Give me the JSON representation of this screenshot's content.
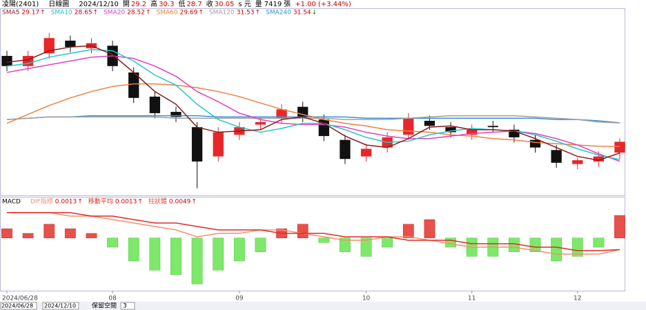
{
  "header": {
    "symbol": "凌陽(2401)",
    "period": "日線圖",
    "date": "2024/12/10",
    "fields": [
      {
        "label": "開",
        "value": 29.2
      },
      {
        "label": "高",
        "value": 30.3
      },
      {
        "label": "低",
        "value": 28.7
      },
      {
        "label": "收",
        "value": 30.05
      }
    ],
    "unit": "s 元",
    "volume_label": "量",
    "volume": 7419,
    "volume_unit": "張",
    "change": "+1.00",
    "change_pct": "(+3.44%)"
  },
  "chart_data": [
    {
      "type": "candlestick",
      "ylim": [
        26,
        40
      ],
      "open": [
        36.8,
        36.0,
        37.0,
        38.0,
        37.4,
        37.6,
        35.5,
        33.6,
        32.4,
        31.2,
        28.9,
        30.6,
        31.4,
        31.9,
        32.8,
        31.8,
        30.2,
        28.9,
        29.6,
        30.6,
        31.7,
        31.2,
        30.6,
        31.3,
        31.0,
        30.2,
        29.4,
        28.3,
        28.5,
        29.2
      ],
      "high": [
        37.2,
        37.2,
        38.6,
        38.4,
        38.2,
        38.0,
        35.9,
        34.0,
        32.8,
        31.6,
        31.2,
        31.6,
        32.0,
        33.0,
        33.2,
        32.2,
        30.6,
        29.9,
        30.8,
        32.3,
        32.1,
        31.6,
        31.4,
        31.7,
        31.4,
        30.6,
        29.8,
        28.8,
        29.3,
        30.3
      ],
      "low": [
        35.6,
        35.6,
        36.6,
        37.1,
        37.0,
        35.6,
        33.1,
        31.9,
        31.6,
        26.4,
        28.5,
        30.2,
        31.0,
        31.5,
        31.6,
        30.1,
        28.3,
        28.5,
        29.2,
        30.2,
        31.0,
        30.4,
        30.2,
        30.8,
        30.0,
        29.2,
        28.0,
        27.9,
        28.1,
        28.7
      ],
      "close": [
        36.0,
        36.8,
        38.2,
        37.5,
        37.8,
        36.0,
        33.5,
        32.3,
        32.0,
        28.5,
        30.8,
        31.2,
        31.6,
        32.6,
        32.0,
        30.5,
        28.7,
        29.5,
        30.4,
        31.9,
        31.3,
        30.8,
        31.0,
        31.2,
        30.4,
        29.6,
        28.4,
        28.6,
        28.9,
        30.05
      ],
      "up_color": "#e8262a",
      "down_color": "#111111",
      "series": [
        {
          "name": "SMA5",
          "value": 29.17,
          "arrow": "↑",
          "color": "#8b1a1a",
          "values": [
            36.3,
            36.5,
            37.2,
            37.5,
            37.6,
            36.9,
            35.5,
            34.0,
            33.0,
            31.2,
            30.8,
            30.9,
            31.0,
            31.8,
            32.0,
            31.5,
            30.5,
            29.8,
            29.6,
            30.3,
            31.2,
            31.3,
            31.0,
            31.0,
            30.9,
            30.3,
            29.6,
            28.9,
            28.6,
            29.17
          ]
        },
        {
          "name": "SMA10",
          "value": 28.65,
          "arrow": "↑",
          "color": "#22c7c7",
          "values": [
            36.0,
            36.2,
            36.7,
            37.0,
            37.3,
            37.2,
            36.4,
            35.3,
            34.5,
            33.0,
            31.8,
            31.2,
            30.8,
            31.1,
            31.5,
            31.5,
            31.0,
            30.4,
            30.0,
            30.1,
            30.6,
            30.9,
            31.1,
            31.0,
            30.9,
            30.6,
            30.1,
            29.5,
            29.0,
            28.65
          ]
        },
        {
          "name": "SMA20",
          "value": 28.52,
          "arrow": "↑",
          "color": "#e040c0",
          "values": [
            35.5,
            35.8,
            36.1,
            36.4,
            36.7,
            36.8,
            36.6,
            36.0,
            35.2,
            34.0,
            33.2,
            32.3,
            31.8,
            31.5,
            31.4,
            31.4,
            31.2,
            30.8,
            30.5,
            30.3,
            30.3,
            30.5,
            30.7,
            30.8,
            30.9,
            30.7,
            30.3,
            29.8,
            29.1,
            28.52
          ]
        },
        {
          "name": "SMA60",
          "value": 29.69,
          "arrow": "↑",
          "color": "#f08040",
          "values": [
            31.5,
            32.2,
            32.9,
            33.5,
            34.0,
            34.4,
            34.6,
            34.6,
            34.5,
            34.3,
            34.0,
            33.6,
            33.1,
            32.6,
            32.2,
            31.8,
            31.5,
            31.3,
            31.0,
            30.9,
            30.8,
            30.6,
            30.5,
            30.3,
            30.2,
            30.0,
            29.9,
            29.8,
            29.7,
            29.69
          ]
        },
        {
          "name": "SMA120",
          "value": 31.53,
          "arrow": "↑",
          "color": "#a0a0a0",
          "values": [
            31.8,
            31.9,
            32.0,
            32.0,
            32.0,
            32.0,
            32.0,
            32.0,
            31.9,
            31.9,
            31.9,
            31.9,
            31.9,
            31.9,
            31.9,
            31.9,
            31.8,
            31.8,
            31.8,
            31.9,
            32.0,
            32.1,
            32.1,
            32.1,
            32.1,
            32.0,
            31.9,
            31.8,
            31.6,
            31.53
          ]
        },
        {
          "name": "SMA240",
          "value": 31.54,
          "arrow": "↓",
          "color": "#3a8fd0",
          "values": [
            31.8,
            31.9,
            32.0,
            32.0,
            32.1,
            32.1,
            32.1,
            32.1,
            32.1,
            32.1,
            32.0,
            32.0,
            32.0,
            32.0,
            32.0,
            32.0,
            32.0,
            31.9,
            31.9,
            31.9,
            31.9,
            31.9,
            31.9,
            31.9,
            31.9,
            31.9,
            31.8,
            31.8,
            31.7,
            31.54
          ]
        }
      ]
    },
    {
      "type": "macd",
      "title": "MACD",
      "ylim": [
        -0.011,
        0.007
      ],
      "y2lim": [
        -0.01,
        0.014
      ],
      "histogram": {
        "name": "柱狀體",
        "value": 0.0049,
        "arrow": "↑",
        "pos_color": "#e8504a",
        "neg_color": "#7ee86a",
        "values": [
          0.002,
          0.001,
          0.003,
          0.002,
          0.001,
          -0.002,
          -0.005,
          -0.007,
          -0.008,
          -0.01,
          -0.007,
          -0.005,
          -0.003,
          0.002,
          0.003,
          -0.001,
          -0.003,
          -0.004,
          -0.002,
          0.003,
          0.004,
          -0.002,
          -0.004,
          -0.004,
          -0.003,
          -0.003,
          -0.005,
          -0.004,
          -0.002,
          0.0049
        ]
      },
      "series": [
        {
          "name": "DIF指標",
          "value": 0.0013,
          "arrow": "↑",
          "color": "#f49070",
          "axis": "y2",
          "values": [
            0.012,
            0.012,
            0.012,
            0.011,
            0.011,
            0.01,
            0.009,
            0.008,
            0.007,
            0.005,
            0.006,
            0.006,
            0.007,
            0.007,
            0.006,
            0.005,
            0.004,
            0.004,
            0.005,
            0.005,
            0.004,
            0.003,
            0.002,
            0.002,
            0.002,
            0.001,
            0.0,
            0.0,
            0.0,
            0.0013
          ]
        },
        {
          "name": "移動平均",
          "value": 0.0013,
          "arrow": "↑",
          "color": "#e02a20",
          "axis": "y2",
          "values": [
            0.012,
            0.012,
            0.012,
            0.012,
            0.011,
            0.011,
            0.01,
            0.009,
            0.009,
            0.008,
            0.007,
            0.007,
            0.007,
            0.006,
            0.006,
            0.006,
            0.005,
            0.005,
            0.005,
            0.004,
            0.004,
            0.004,
            0.003,
            0.003,
            0.003,
            0.002,
            0.002,
            0.001,
            0.001,
            0.0013
          ]
        }
      ]
    }
  ],
  "x_labels": [
    {
      "label": "2024/06/28",
      "index": 0
    },
    {
      "label": "08",
      "index": 5
    },
    {
      "label": "09",
      "index": 11
    },
    {
      "label": "10",
      "index": 17
    },
    {
      "label": "11",
      "index": 22
    },
    {
      "label": "12",
      "index": 27
    }
  ],
  "footer": {
    "start": "2024/06/28",
    "end": "2024/12/10",
    "space_label": "保留空間",
    "space": "3"
  }
}
